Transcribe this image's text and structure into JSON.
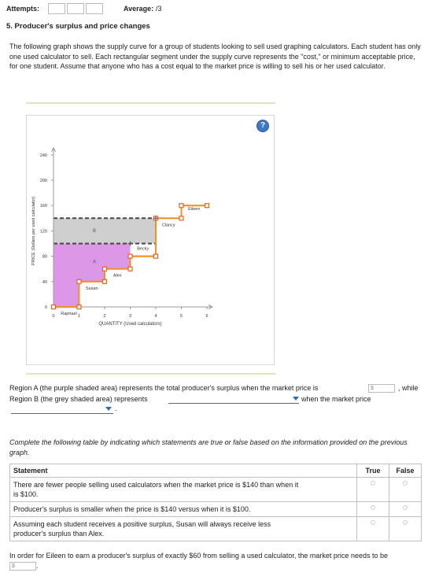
{
  "header": {
    "attempts_label": "Attempts:",
    "average_label": "Average:",
    "average_value": "/3",
    "question_title": "5. Producer's surplus and price changes"
  },
  "intro": {
    "text": "The following graph shows the supply curve for a group of students looking to sell used graphing calculators. Each student has only one used calculator to sell. Each rectangular segment under the supply curve represents the \"cost,\" or minimum acceptable price, for one student. Assume that anyone who has a cost equal to the market price is willing to sell his or her used calculator."
  },
  "graph": {
    "help_icon": "?",
    "ylabel": "PRICE (Dollars per used calculator)",
    "xlabel": "QUANTITY (Used calculators)",
    "y_ticks": [
      "0",
      "40",
      "80",
      "120",
      "160",
      "200",
      "240"
    ],
    "x_ticks": [
      "0",
      "1",
      "2",
      "3",
      "4",
      "5",
      "6"
    ],
    "students": [
      {
        "name": "Raphael",
        "cost": 0
      },
      {
        "name": "Susan",
        "cost": 40
      },
      {
        "name": "Alex",
        "cost": 60
      },
      {
        "name": "Becky",
        "cost": 80
      },
      {
        "name": "Clancy",
        "cost": 140
      },
      {
        "name": "Eileen",
        "cost": 160
      }
    ],
    "region_labels": {
      "a": "A",
      "b": "B"
    },
    "colors": {
      "supply": "#f29222",
      "region_a": "#dc97e6",
      "region_b": "#cfcfcf",
      "handle": "#e8611b"
    }
  },
  "chart_data": {
    "type": "area",
    "xlabel": "QUANTITY (Used calculators)",
    "ylabel": "PRICE (Dollars per used calculator)",
    "xlim": [
      0,
      6
    ],
    "ylim": [
      0,
      240
    ],
    "x_ticks": [
      0,
      1,
      2,
      3,
      4,
      5,
      6
    ],
    "y_ticks": [
      0,
      40,
      80,
      120,
      160,
      200,
      240
    ],
    "series": [
      {
        "name": "Raphael",
        "x": [
          0,
          1
        ],
        "y": [
          0,
          0
        ]
      },
      {
        "name": "Susan",
        "x": [
          1,
          2
        ],
        "y": [
          40,
          40
        ]
      },
      {
        "name": "Alex",
        "x": [
          2,
          3
        ],
        "y": [
          60,
          60
        ]
      },
      {
        "name": "Becky",
        "x": [
          3,
          4
        ],
        "y": [
          80,
          80
        ]
      },
      {
        "name": "Clancy",
        "x": [
          4,
          5
        ],
        "y": [
          140,
          140
        ]
      },
      {
        "name": "Eileen",
        "x": [
          5,
          6
        ],
        "y": [
          160,
          160
        ]
      }
    ],
    "market_price_lines": [
      100,
      140
    ],
    "region_a_price": 100,
    "region_b_price": 140
  },
  "region_text": {
    "part1": "Region A (the purple shaded area) represents the total producer's surplus when the market price is",
    "part2": ", while",
    "part3": "Region B (the grey shaded area) represents",
    "part4": "when the market price",
    "part5": ".",
    "dollar": "$"
  },
  "instructions": "Complete the following table by indicating which statements are true or false based on the information provided on the previous graph.",
  "table": {
    "headers": [
      "Statement",
      "True",
      "False"
    ],
    "rows": [
      "There are fewer people selling used calculators when the market price is $140 than when it is $100.",
      "Producer's surplus is smaller when the price is $140 versus when it is $100.",
      "Assuming each student receives a positive surplus, Susan will always receive less producer's surplus than Alex."
    ]
  },
  "final_question": {
    "text": "In order for Eileen to earn a producer's surplus of exactly $60 from selling a used calculator, the market price needs to be",
    "dollar": "$",
    "period": "."
  }
}
